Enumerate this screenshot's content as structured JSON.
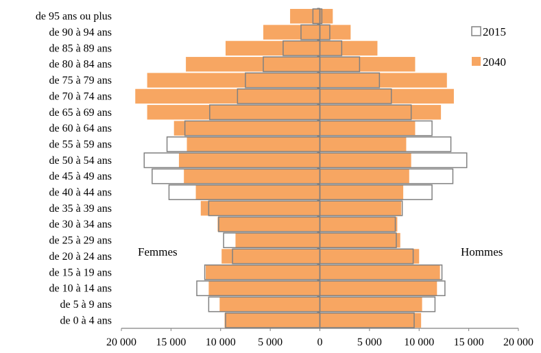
{
  "chart_data": {
    "type": "bar",
    "orientation": "horizontal",
    "subtype": "population-pyramid",
    "categories": [
      "de 0 à 4 ans",
      "de 5 à 9 ans",
      "de 10 à 14 ans",
      "de 15 à 19 ans",
      "de 20 à 24 ans",
      "de 25 à 29 ans",
      "de 30 à 34 ans",
      "de 35 à 39 ans",
      "de 40 à 44 ans",
      "de 45 à 49 ans",
      "de 50 à 54 ans",
      "de 55 à 59 ans",
      "de 60 à 64 ans",
      "de 65 à 69 ans",
      "de 70 à 74 ans",
      "de 75 à 79 ans",
      "de 80 à 84 ans",
      "de 85 à 89 ans",
      "de 90 à 94 ans",
      "de 95 ans ou plus"
    ],
    "series": [
      {
        "name": "2015",
        "style": "outline",
        "color": "#808080",
        "femmes": [
          9500,
          11200,
          12400,
          11600,
          8800,
          9700,
          10200,
          11200,
          15200,
          16900,
          17700,
          15400,
          13600,
          11100,
          8300,
          7500,
          5700,
          3700,
          1900,
          700
        ],
        "hommes": [
          9500,
          11600,
          12600,
          12300,
          9400,
          7700,
          7600,
          8300,
          11300,
          13400,
          14800,
          13200,
          11300,
          9200,
          7200,
          6000,
          4000,
          2200,
          1000,
          200
        ]
      },
      {
        "name": "2040",
        "style": "fill",
        "color": "#F7A662",
        "femmes": [
          9600,
          10100,
          11200,
          11500,
          9900,
          8500,
          10300,
          12000,
          12500,
          13700,
          14200,
          13400,
          14700,
          17400,
          18600,
          17400,
          13500,
          9500,
          5700,
          3000
        ],
        "hommes": [
          10200,
          10300,
          11800,
          12100,
          10000,
          8100,
          7800,
          8200,
          8400,
          9000,
          9200,
          8700,
          9600,
          12200,
          13500,
          12800,
          9600,
          5800,
          3100,
          1300
        ]
      }
    ],
    "x_ticks": [
      "20 000",
      "15 000",
      "10 000",
      "5 000",
      "0",
      "5 000",
      "10 000",
      "15 000",
      "20 000"
    ],
    "xlim": [
      -20000,
      20000
    ],
    "legend_position": "top-right",
    "grid": false
  },
  "annotations": {
    "left": "Femmes",
    "right": "Hommes"
  },
  "legend": {
    "label_2015": "2015",
    "label_2040": "2040"
  }
}
